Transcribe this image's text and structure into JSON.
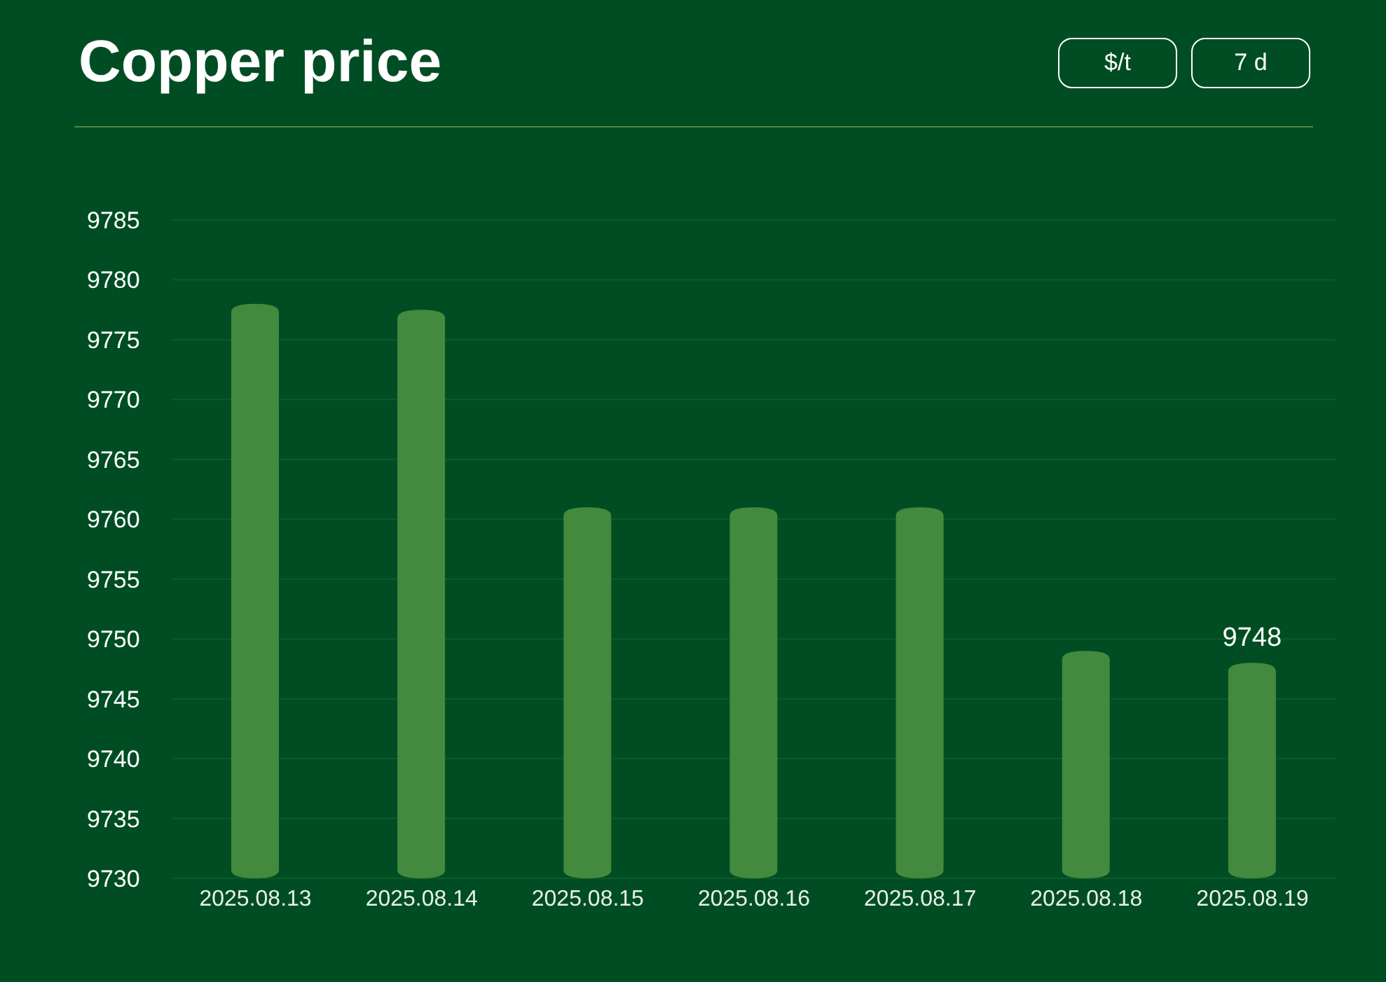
{
  "chart_data": {
    "type": "bar",
    "title": "Copper price",
    "annotations": [
      "$/t",
      "7 d"
    ],
    "categories": [
      "2025.08.13",
      "2025.08.14",
      "2025.08.15",
      "2025.08.16",
      "2025.08.17",
      "2025.08.18",
      "2025.08.19"
    ],
    "values": [
      9778,
      9777.5,
      9761,
      9761,
      9761,
      9749,
      9748
    ],
    "value_labels": [
      null,
      null,
      null,
      null,
      null,
      null,
      "9748"
    ],
    "color": "#438a3e",
    "ylim": [
      9730,
      9785
    ],
    "yticks": [
      9730,
      9735,
      9740,
      9745,
      9750,
      9755,
      9760,
      9765,
      9770,
      9775,
      9780,
      9785
    ],
    "grid": "y"
  }
}
